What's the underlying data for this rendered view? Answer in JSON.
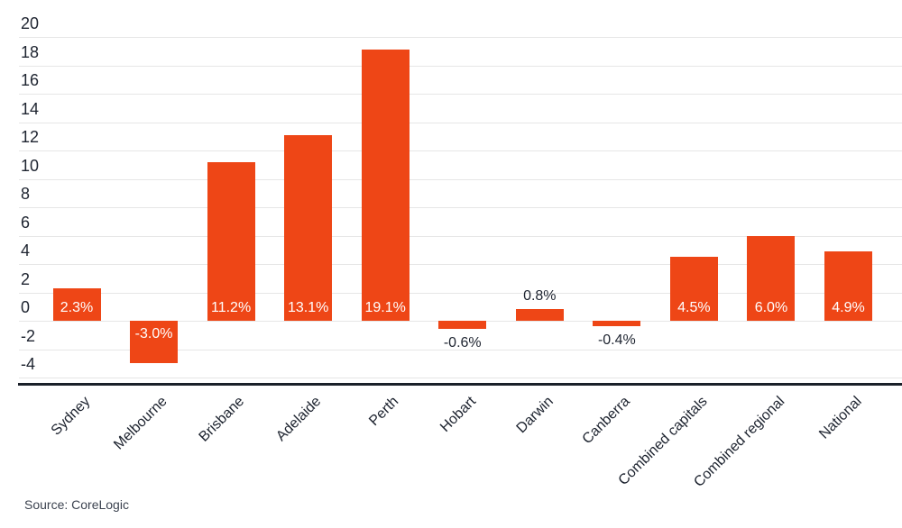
{
  "chart_data": {
    "type": "bar",
    "title": "",
    "xlabel": "",
    "ylabel": "",
    "categories": [
      "Sydney",
      "Melbourne",
      "Brisbane",
      "Adelaide",
      "Perth",
      "Hobart",
      "Darwin",
      "Canberra",
      "Combined capitals",
      "Combined regional",
      "National"
    ],
    "values": [
      2.3,
      -3.0,
      11.2,
      13.1,
      19.1,
      -0.6,
      0.8,
      -0.4,
      4.5,
      6.0,
      4.9
    ],
    "bar_labels": [
      "2.3%",
      "-3.0%",
      "11.2%",
      "13.1%",
      "19.1%",
      "-0.6%",
      "0.8%",
      "-0.4%",
      "4.5%",
      "6.0%",
      "4.9%"
    ],
    "ytick_values": [
      20,
      18,
      16,
      14,
      12,
      10,
      8,
      6,
      4,
      2,
      0,
      -2,
      -4
    ],
    "ytick_labels": [
      "20",
      "18",
      "16",
      "14",
      "12",
      "10",
      "8",
      "6",
      "4",
      "2",
      "0",
      "-2",
      "-4"
    ],
    "ylim": [
      -4,
      20
    ],
    "grid": true,
    "legend": "none",
    "colors": {
      "bar": "#ee4616",
      "label_inside": "#ffffff",
      "label_outside": "#1e2430",
      "gridline": "#e6e6e6",
      "axis_line": "#1a2029",
      "tick_text": "#1e2430"
    }
  },
  "footer": {
    "source_text": "Source: CoreLogic"
  }
}
